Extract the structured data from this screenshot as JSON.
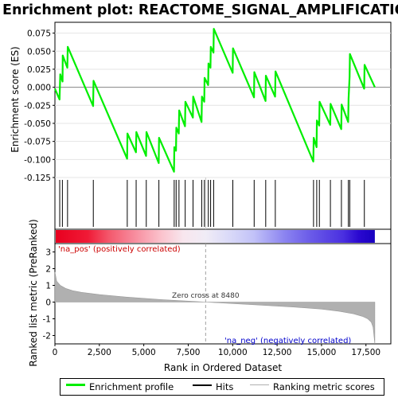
{
  "title": "Enrichment plot: REACTOME_SIGNAL_AMPLIFICATION",
  "colors": {
    "enrichment_line": "#00ee00",
    "hits": "#000000",
    "metric_fill": "#b0b0b0",
    "pos_label": "#cc0000",
    "neg_label": "#0000cc",
    "zero_cross_line": "#a0a0a0"
  },
  "chart_data": [
    {
      "type": "line",
      "name": "enrichment-profile",
      "ylabel": "Enrichment score (ES)",
      "xlim": [
        0,
        18900
      ],
      "ylim": [
        -0.125,
        0.09
      ],
      "yticks": [
        0.075,
        0.05,
        0.025,
        0.0,
        -0.025,
        -0.05,
        -0.075,
        -0.1,
        -0.125
      ],
      "ytick_labels": [
        "0.075",
        "0.050",
        "0.025",
        "0.000",
        "-0.025",
        "-0.050",
        "-0.075",
        "-0.100",
        "-0.125"
      ],
      "x": [
        0,
        260,
        300,
        430,
        440,
        700,
        720,
        2150,
        2170,
        4060,
        4080,
        4560,
        4580,
        5130,
        5150,
        5840,
        5860,
        6700,
        6720,
        6810,
        6830,
        6970,
        6990,
        7320,
        7340,
        7760,
        7780,
        8250,
        8270,
        8400,
        8420,
        8620,
        8640,
        8750,
        8770,
        8920,
        8940,
        10000,
        10020,
        11200,
        11220,
        11850,
        11870,
        12390,
        12410,
        14540,
        14560,
        14720,
        14740,
        14870,
        14890,
        15490,
        15510,
        16110,
        16130,
        16500,
        16520,
        16580,
        16600,
        17400,
        17420,
        18000
      ],
      "y": [
        -0.002,
        -0.017,
        0.018,
        0.008,
        0.044,
        0.027,
        0.056,
        -0.026,
        0.009,
        -0.099,
        -0.064,
        -0.09,
        -0.062,
        -0.095,
        -0.062,
        -0.105,
        -0.07,
        -0.117,
        -0.083,
        -0.088,
        -0.056,
        -0.064,
        -0.032,
        -0.054,
        -0.02,
        -0.042,
        -0.013,
        -0.048,
        -0.013,
        -0.02,
        0.013,
        0.003,
        0.033,
        0.027,
        0.056,
        0.048,
        0.081,
        0.02,
        0.054,
        -0.014,
        0.021,
        -0.019,
        0.016,
        -0.013,
        0.022,
        -0.103,
        -0.07,
        -0.083,
        -0.046,
        -0.053,
        -0.02,
        -0.052,
        -0.023,
        -0.058,
        -0.024,
        -0.048,
        -0.016,
        0.015,
        0.046,
        -0.002,
        0.031,
        0.0
      ]
    },
    {
      "type": "scatter",
      "name": "hits",
      "x": [
        270,
        420,
        710,
        2160,
        4070,
        4570,
        5140,
        5850,
        6710,
        6820,
        6980,
        7330,
        7770,
        8260,
        8410,
        8630,
        8760,
        8930,
        10010,
        11210,
        11860,
        12400,
        14550,
        14730,
        14880,
        15500,
        16120,
        16510,
        16590,
        17410
      ]
    },
    {
      "type": "area",
      "name": "ranked-list-metric",
      "ylabel": "Ranked list metric (PreRanked)",
      "xlabel": "Rank in Ordered Dataset",
      "xlim": [
        0,
        18900
      ],
      "ylim": [
        -2.5,
        3.5
      ],
      "xticks": [
        0,
        2500,
        5000,
        7500,
        10000,
        12500,
        15000,
        17500
      ],
      "xtick_labels": [
        "0",
        "2,500",
        "5,000",
        "7,500",
        "10,000",
        "12,500",
        "15,000",
        "17,500"
      ],
      "yticks": [
        3,
        2,
        1,
        0,
        -1,
        -2
      ],
      "ytick_labels": [
        "3",
        "2",
        "1",
        "0",
        "-1",
        "-2"
      ],
      "x": [
        0,
        100,
        300,
        600,
        1000,
        1500,
        2500,
        4000,
        6000,
        8480,
        11000,
        13500,
        15000,
        16000,
        16800,
        17300,
        17600,
        17800,
        17900,
        18000
      ],
      "y": [
        1.8,
        1.25,
        1.0,
        0.82,
        0.68,
        0.58,
        0.45,
        0.3,
        0.15,
        0.0,
        -0.15,
        -0.3,
        -0.42,
        -0.55,
        -0.7,
        -0.85,
        -1.0,
        -1.2,
        -1.5,
        -2.5
      ]
    }
  ],
  "annotations": {
    "zero_cross": "Zero cross at 8480",
    "zero_cross_x": 8480,
    "pos_label": "'na_pos' (positively correlated)",
    "neg_label": "'na_neg' (negatively correlated)"
  },
  "legend": {
    "items": [
      {
        "label": "Enrichment profile",
        "color": "#00ee00"
      },
      {
        "label": "Hits",
        "color": "#000000"
      },
      {
        "label": "Ranking metric scores",
        "color": "#b0b0b0"
      }
    ]
  }
}
